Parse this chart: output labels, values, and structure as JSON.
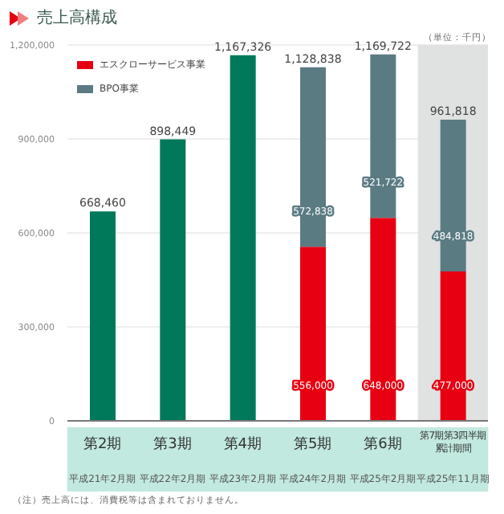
{
  "chart_data": {
    "type": "bar",
    "title": "売上高構成",
    "stacked": true,
    "categories": [
      "第2期平成21年2月期",
      "第3期平成22年2月期",
      "第4期平成23年2月期",
      "第5期平成24年2月期",
      "第6期平成25年2月期",
      "第7期第3四半期累計期間平成25年11月期"
    ],
    "series": [
      {
        "color": "#00785a",
        "values": [
          668460,
          898449,
          1167326,
          null,
          null,
          null
        ],
        "value_labels": [
          "668,460",
          "898,449",
          "1,167,326",
          null,
          null,
          null
        ]
      },
      {
        "name": "エスクローサービス事業",
        "color": "#e60012",
        "values": [
          null,
          null,
          null,
          556000,
          648000,
          477000
        ],
        "value_labels": [
          null,
          null,
          null,
          "556,000",
          "648,000",
          "477,000"
        ]
      },
      {
        "name": "BPO事業",
        "color": "#5b7b83",
        "values": [
          null,
          null,
          null,
          572838,
          521722,
          484818
        ],
        "value_labels": [
          null,
          null,
          null,
          "572,838",
          "521,722",
          "484,818"
        ]
      }
    ],
    "totals": [
      null,
      null,
      null,
      "1,128,838",
      "1,169,722",
      "961,818"
    ],
    "ylim": [
      0,
      1200000
    ],
    "yticks": [
      {
        "value": 0,
        "label": "0"
      },
      {
        "value": 300000,
        "label": "300,000"
      },
      {
        "value": 600000,
        "label": "600,000"
      },
      {
        "value": 900000,
        "label": "900,000"
      },
      {
        "value": 1200000,
        "label": "1,200,000"
      }
    ],
    "grid": "y",
    "legend": "top left",
    "bands": [
      {
        "axis": "x",
        "from": "第7期第3四半期累計期間平成25年11月期",
        "to": "第7期第3四半期累計期間平成25年11月期",
        "color": "#e0e2e2"
      }
    ],
    "annotations": [
      "（単位：千円）",
      "（注）売上高には、消費税等は含まれておりません。"
    ]
  }
}
